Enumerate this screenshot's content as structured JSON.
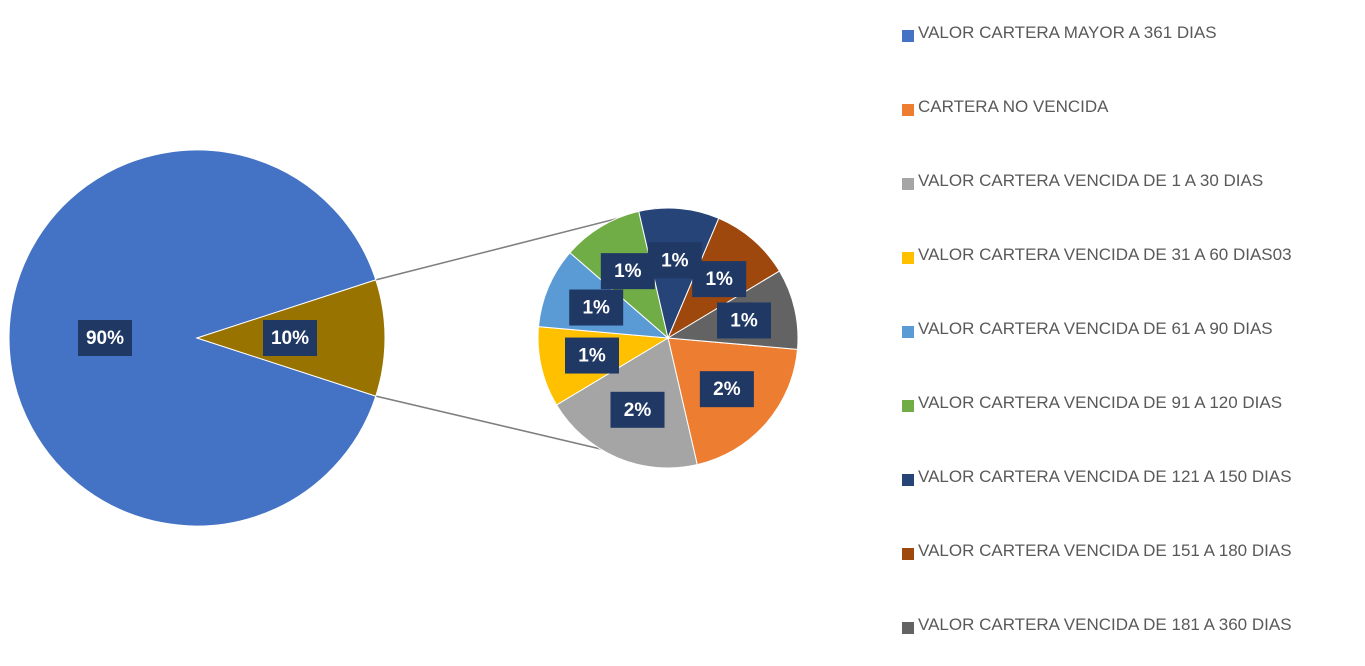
{
  "chart_data": {
    "type": "pie_of_pie",
    "categories": [
      "VALOR CARTERA MAYOR A 361 DIAS",
      "CARTERA NO VENCIDA",
      "VALOR CARTERA VENCIDA DE 1 A 30 DIAS",
      "VALOR CARTERA VENCIDA DE 31 A 60 DIAS03",
      "VALOR CARTERA VENCIDA DE 61 A 90 DIAS",
      "VALOR CARTERA VENCIDA DE 91 A 120 DIAS",
      "VALOR CARTERA VENCIDA DE 121 A 150 DIAS",
      "VALOR CARTERA VENCIDA DE 151 A 180 DIAS",
      "VALOR CARTERA VENCIDA DE 181 A 360 DIAS"
    ],
    "values": [
      90,
      2,
      2,
      1,
      1,
      1,
      1,
      1,
      1
    ],
    "value_labels": [
      "90%",
      "2%",
      "2%",
      "1%",
      "1%",
      "1%",
      "1%",
      "1%",
      "1%"
    ],
    "colors": [
      "#4472c4",
      "#ed7d31",
      "#a5a5a5",
      "#ffc000",
      "#5b9bd5",
      "#70ad47",
      "#264478",
      "#9e480e",
      "#636363"
    ],
    "other": {
      "value": 10,
      "label": "10%",
      "color": "#997300"
    },
    "legend": "right"
  }
}
